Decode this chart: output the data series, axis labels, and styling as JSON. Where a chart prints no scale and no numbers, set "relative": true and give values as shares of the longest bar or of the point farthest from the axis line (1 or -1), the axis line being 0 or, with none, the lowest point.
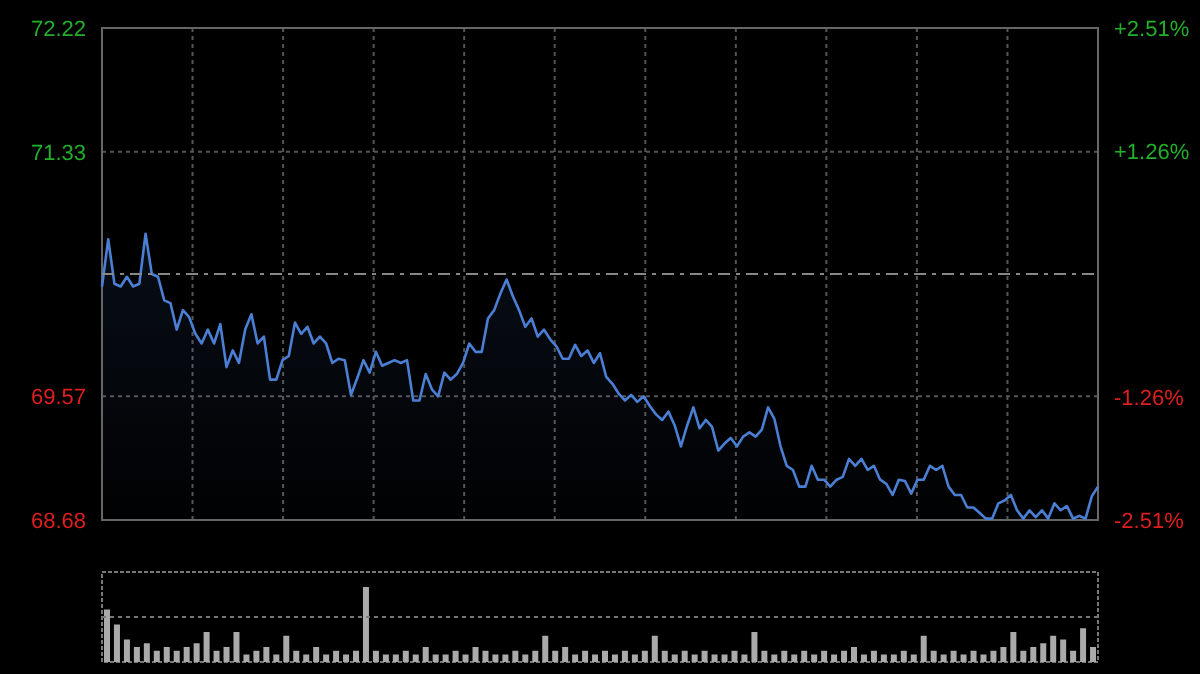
{
  "chart_data": [
    {
      "type": "area",
      "categories": [
        null,
        null,
        null,
        null,
        null,
        null,
        null,
        null,
        null,
        null,
        null,
        null,
        null,
        null,
        null,
        null,
        null,
        null,
        null,
        null,
        null,
        null,
        null,
        null,
        null,
        null,
        null,
        null,
        null,
        null,
        null,
        null,
        null,
        null,
        null,
        null,
        null,
        null,
        null,
        null,
        null,
        null,
        null,
        null,
        null,
        null,
        null,
        null,
        null,
        null,
        null,
        null,
        null,
        null,
        null,
        null,
        null,
        null,
        null,
        null,
        null,
        null,
        null,
        null,
        null,
        null,
        null,
        null,
        null,
        null,
        null,
        null,
        null,
        null,
        null,
        null,
        null,
        null,
        null,
        null,
        null,
        null,
        null,
        null,
        null,
        null,
        null,
        null,
        null,
        null,
        null,
        null,
        null,
        null,
        null,
        null,
        null,
        null,
        null,
        null,
        null,
        null,
        null,
        null,
        null,
        null,
        null,
        null,
        null,
        null,
        null,
        null,
        null,
        null,
        null,
        null,
        null,
        null,
        null,
        null,
        null,
        null,
        null,
        null,
        null,
        null,
        null,
        null,
        null,
        null,
        null,
        null,
        null,
        null,
        null,
        null,
        null,
        null,
        null,
        null,
        null,
        null,
        null,
        null,
        null,
        null,
        null,
        null,
        null,
        null,
        null,
        null,
        null,
        null,
        null,
        null,
        null,
        null,
        null,
        null,
        null
      ],
      "series": [
        {
          "color": "#4a7fd4",
          "values": [
            70.36,
            70.7,
            70.38,
            70.36,
            70.43,
            70.36,
            70.38,
            70.74,
            70.45,
            70.43,
            70.26,
            70.24,
            70.05,
            70.19,
            70.14,
            70.02,
            69.95,
            70.05,
            69.95,
            70.09,
            69.78,
            69.9,
            69.81,
            70.05,
            70.16,
            69.95,
            70.0,
            69.69,
            69.69,
            69.83,
            69.86,
            70.1,
            70.02,
            70.07,
            69.95,
            70.0,
            69.95,
            69.81,
            69.84,
            69.83,
            69.58,
            69.7,
            69.83,
            69.74,
            69.89,
            69.79,
            69.81,
            69.83,
            69.81,
            69.83,
            69.54,
            69.54,
            69.73,
            69.62,
            69.57,
            69.74,
            69.69,
            69.73,
            69.81,
            69.95,
            69.89,
            69.89,
            70.13,
            70.19,
            70.31,
            70.41,
            70.29,
            70.19,
            70.07,
            70.13,
            70.0,
            70.05,
            69.98,
            69.93,
            69.84,
            69.84,
            69.94,
            69.86,
            69.9,
            69.81,
            69.88,
            69.71,
            69.66,
            69.59,
            69.54,
            69.58,
            69.53,
            69.57,
            69.5,
            69.44,
            69.4,
            69.46,
            69.36,
            69.21,
            69.36,
            69.49,
            69.34,
            69.4,
            69.35,
            69.18,
            69.23,
            69.27,
            69.21,
            69.28,
            69.31,
            69.28,
            69.33,
            69.49,
            69.41,
            69.21,
            69.07,
            69.04,
            68.92,
            68.92,
            69.07,
            68.97,
            68.97,
            68.92,
            68.97,
            68.99,
            69.12,
            69.07,
            69.12,
            69.04,
            69.07,
            68.97,
            68.94,
            68.86,
            68.97,
            68.96,
            68.87,
            68.97,
            68.97,
            69.07,
            69.04,
            69.07,
            68.92,
            68.86,
            68.86,
            68.77,
            68.77,
            68.73,
            68.69,
            68.69,
            68.8,
            68.82,
            68.86,
            68.75,
            68.69,
            68.75,
            68.7,
            68.75,
            68.69,
            68.8,
            68.75,
            68.78,
            68.69,
            68.71,
            68.69,
            68.85,
            68.92
          ]
        }
      ],
      "ylim": [
        68.68,
        72.22
      ],
      "yticks": [
        68.68,
        69.57,
        71.33,
        72.22
      ],
      "y2lim": [
        -2.51,
        2.51
      ],
      "y2ticks": [
        {
          "value": -2.51,
          "label": "-2.51%"
        },
        {
          "value": -1.26,
          "label": "-1.26%"
        },
        {
          "value": 1.26,
          "label": "+1.26%"
        },
        {
          "value": 2.51,
          "label": "+2.51%"
        }
      ],
      "ref_lines": [
        {
          "axis": "y",
          "value": 70.45,
          "label": null,
          "color": "#888888",
          "line_style": "dashed"
        }
      ],
      "grid": true
    },
    {
      "type": "bar",
      "relative": true,
      "color": "#aaaaaa",
      "ref_lines": [
        {
          "axis": "y",
          "value": 0.6,
          "label": null,
          "color": "#777777",
          "line_style": "dotted"
        }
      ],
      "categories": [
        null,
        null,
        null,
        null,
        null,
        null,
        null,
        null,
        null,
        null,
        null,
        null,
        null,
        null,
        null,
        null,
        null,
        null,
        null,
        null,
        null,
        null,
        null,
        null,
        null,
        null,
        null,
        null,
        null,
        null,
        null,
        null,
        null,
        null,
        null,
        null,
        null,
        null,
        null,
        null,
        null,
        null,
        null,
        null,
        null,
        null,
        null,
        null,
        null,
        null,
        null,
        null,
        null,
        null,
        null,
        null,
        null,
        null,
        null,
        null,
        null,
        null,
        null,
        null,
        null,
        null,
        null,
        null,
        null,
        null,
        null,
        null,
        null,
        null,
        null,
        null,
        null,
        null,
        null,
        null,
        null,
        null,
        null,
        null,
        null,
        null,
        null,
        null,
        null,
        null,
        null,
        null,
        null,
        null,
        null,
        null,
        null,
        null,
        null,
        null
      ],
      "values": [
        0.7,
        0.5,
        0.3,
        0.2,
        0.25,
        0.15,
        0.2,
        0.15,
        0.2,
        0.25,
        0.4,
        0.15,
        0.2,
        0.4,
        0.1,
        0.15,
        0.2,
        0.1,
        0.35,
        0.15,
        0.1,
        0.2,
        0.1,
        0.15,
        0.1,
        0.15,
        1.0,
        0.15,
        0.1,
        0.1,
        0.15,
        0.1,
        0.2,
        0.1,
        0.1,
        0.15,
        0.1,
        0.2,
        0.15,
        0.1,
        0.1,
        0.15,
        0.1,
        0.15,
        0.35,
        0.15,
        0.2,
        0.1,
        0.15,
        0.1,
        0.15,
        0.1,
        0.15,
        0.1,
        0.15,
        0.35,
        0.15,
        0.1,
        0.15,
        0.1,
        0.15,
        0.1,
        0.1,
        0.15,
        0.1,
        0.4,
        0.15,
        0.1,
        0.15,
        0.1,
        0.15,
        0.1,
        0.15,
        0.1,
        0.15,
        0.2,
        0.1,
        0.15,
        0.1,
        0.1,
        0.15,
        0.1,
        0.35,
        0.15,
        0.1,
        0.15,
        0.1,
        0.15,
        0.1,
        0.15,
        0.2,
        0.4,
        0.15,
        0.2,
        0.25,
        0.35,
        0.3,
        0.15,
        0.45,
        0.2
      ]
    }
  ]
}
